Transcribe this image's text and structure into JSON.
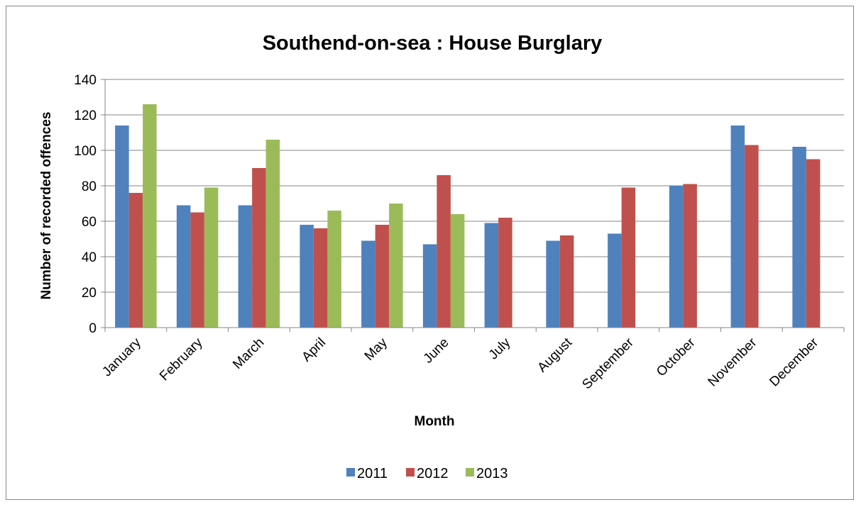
{
  "chart_data": {
    "type": "bar",
    "title": "Southend-on-sea : House Burglary",
    "xlabel": "Month",
    "ylabel": "Number of recorded offences",
    "ylim": [
      0,
      140
    ],
    "yticks": [
      0,
      20,
      40,
      60,
      80,
      100,
      120,
      140
    ],
    "grid": true,
    "legend_position": "bottom",
    "categories": [
      "January",
      "February",
      "March",
      "April",
      "May",
      "June",
      "July",
      "August",
      "September",
      "October",
      "November",
      "December"
    ],
    "series": [
      {
        "name": "2011",
        "color": "#4F81BD",
        "values": [
          114,
          69,
          69,
          58,
          49,
          47,
          59,
          49,
          53,
          80,
          114,
          102
        ]
      },
      {
        "name": "2012",
        "color": "#C0504D",
        "values": [
          76,
          65,
          90,
          56,
          58,
          86,
          62,
          52,
          79,
          81,
          103,
          95
        ]
      },
      {
        "name": "2013",
        "color": "#9BBB59",
        "values": [
          126,
          79,
          106,
          66,
          70,
          64,
          null,
          null,
          null,
          null,
          null,
          null
        ]
      }
    ]
  }
}
